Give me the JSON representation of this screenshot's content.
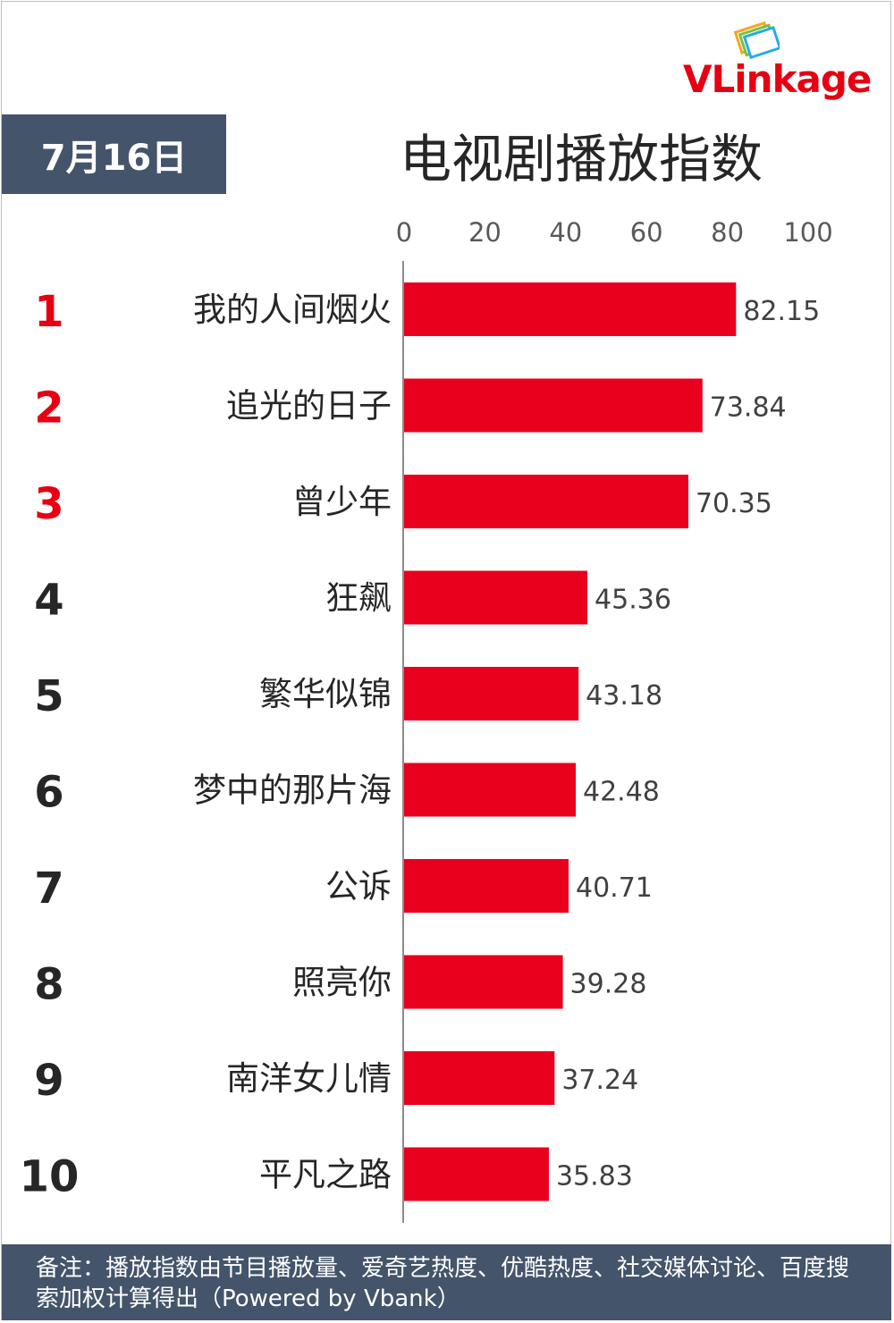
{
  "date_label": "7月16日",
  "title": "电视剧播放指数",
  "logo": {
    "text": "VLinkage",
    "accent": "#e60012"
  },
  "colors": {
    "bar": "#e8001c",
    "top_rank": "#e60012",
    "rank": "#262626",
    "header_bg": "#44546a"
  },
  "footnote": "备注：播放指数由节目播放量、爱奇艺热度、优酷热度、社交媒体讨论、百度搜索加权计算得出（Powered by Vbank）",
  "chart_data": {
    "type": "bar",
    "orientation": "horizontal",
    "title": "电视剧播放指数",
    "xlim": [
      0,
      100
    ],
    "x_ticks": [
      "0",
      "20",
      "40",
      "60",
      "80",
      "100"
    ],
    "grid": false,
    "axis_position": "top",
    "ranks": [
      "1",
      "2",
      "3",
      "4",
      "5",
      "6",
      "7",
      "8",
      "9",
      "10"
    ],
    "categories": [
      "我的人间烟火",
      "追光的日子",
      "曾少年",
      "狂飙",
      "繁华似锦",
      "梦中的那片海",
      "公诉",
      "照亮你",
      "南洋女儿情",
      "平凡之路"
    ],
    "values": [
      82.15,
      73.84,
      70.35,
      45.36,
      43.18,
      42.48,
      40.71,
      39.28,
      37.24,
      35.83
    ],
    "value_labels": [
      "82.15",
      "73.84",
      "70.35",
      "45.36",
      "43.18",
      "42.48",
      "40.71",
      "39.28",
      "37.24",
      "35.83"
    ]
  }
}
